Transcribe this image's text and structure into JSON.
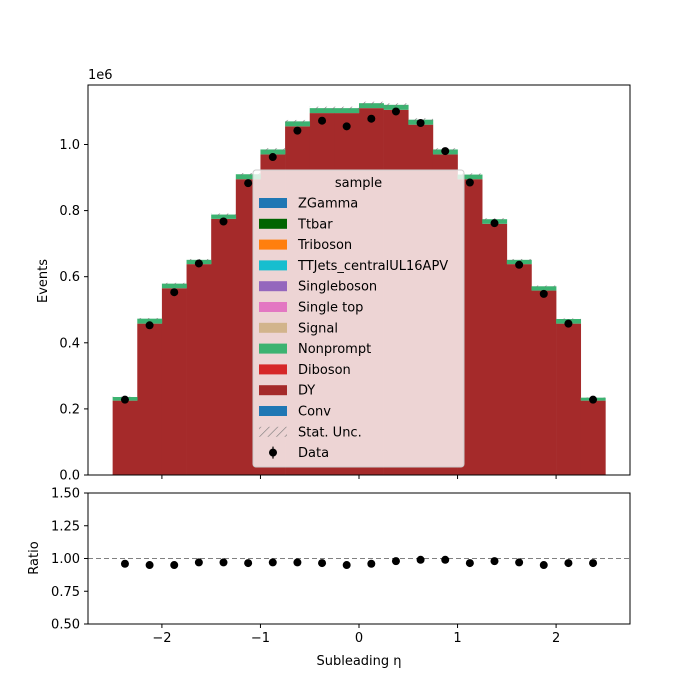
{
  "chart_data": {
    "type": "bar",
    "subtype": "stacked-step-histogram-with-ratio-panel",
    "xlabel": "Subleading η",
    "ylabel": "Events",
    "ratio_ylabel": "Ratio",
    "scale_label": "1e6",
    "scale_factor": 1000000,
    "xlim": [
      -2.75,
      2.75
    ],
    "ylim": [
      0,
      1180000
    ],
    "ratio_ylim": [
      0.5,
      1.5
    ],
    "ratio_reference": 1.0,
    "bin_edges": [
      -2.5,
      -2.25,
      -2.0,
      -1.75,
      -1.5,
      -1.25,
      -1.0,
      -0.75,
      -0.5,
      -0.25,
      0.0,
      0.25,
      0.5,
      0.75,
      1.0,
      1.25,
      1.5,
      1.75,
      2.0,
      2.25,
      2.5
    ],
    "x_ticks": [
      {
        "value": -2,
        "label": "−2"
      },
      {
        "value": -1,
        "label": "−1"
      },
      {
        "value": 0,
        "label": "0"
      },
      {
        "value": 1,
        "label": "1"
      },
      {
        "value": 2,
        "label": "2"
      }
    ],
    "y_ticks": [
      {
        "value": 0,
        "label": "0.0"
      },
      {
        "value": 200000,
        "label": "0.2"
      },
      {
        "value": 400000,
        "label": "0.4"
      },
      {
        "value": 600000,
        "label": "0.6"
      },
      {
        "value": 800000,
        "label": "0.8"
      },
      {
        "value": 1000000,
        "label": "1.0"
      }
    ],
    "ratio_y_ticks": [
      {
        "value": 0.5,
        "label": "0.50"
      },
      {
        "value": 0.75,
        "label": "0.75"
      },
      {
        "value": 1.0,
        "label": "1.00"
      },
      {
        "value": 1.25,
        "label": "1.25"
      },
      {
        "value": 1.5,
        "label": "1.50"
      }
    ],
    "series": [
      {
        "name": "DY",
        "color": "#a52a2a",
        "values": [
          225000,
          458000,
          565000,
          638000,
          775000,
          895000,
          970000,
          1055000,
          1095000,
          1095000,
          1110000,
          1105000,
          1060000,
          970000,
          895000,
          760000,
          638000,
          558000,
          458000,
          225000
        ]
      },
      {
        "name": "Nonprompt",
        "color": "#3cb371",
        "values": [
          11000,
          15000,
          14000,
          13000,
          13000,
          15000,
          15000,
          15000,
          15000,
          15000,
          15000,
          15000,
          15000,
          15000,
          14000,
          14000,
          13000,
          13000,
          14000,
          9000
        ]
      }
    ],
    "data_points": {
      "name": "Data",
      "x": [
        -2.375,
        -2.125,
        -1.875,
        -1.625,
        -1.375,
        -1.125,
        -0.875,
        -0.625,
        -0.375,
        -0.125,
        0.125,
        0.375,
        0.625,
        0.875,
        1.125,
        1.375,
        1.625,
        1.875,
        2.125,
        2.375
      ],
      "values": [
        228000,
        453000,
        553000,
        640000,
        767000,
        883000,
        962000,
        1042000,
        1072000,
        1055000,
        1078000,
        1100000,
        1065000,
        980000,
        885000,
        762000,
        636000,
        548000,
        458000,
        228000
      ],
      "ratio": [
        0.96,
        0.95,
        0.95,
        0.97,
        0.97,
        0.965,
        0.97,
        0.97,
        0.965,
        0.95,
        0.96,
        0.98,
        0.99,
        0.99,
        0.965,
        0.98,
        0.97,
        0.95,
        0.965,
        0.965
      ]
    },
    "legend": {
      "title": "sample",
      "placement": "center",
      "entries": [
        {
          "label": "ZGamma",
          "color": "#1f77b4",
          "kind": "patch"
        },
        {
          "label": "Ttbar",
          "color": "#006400",
          "kind": "patch"
        },
        {
          "label": "Triboson",
          "color": "#ff7f0e",
          "kind": "patch"
        },
        {
          "label": "TTJets_centralUL16APV",
          "color": "#17becf",
          "kind": "patch"
        },
        {
          "label": "Singleboson",
          "color": "#9467bd",
          "kind": "patch"
        },
        {
          "label": "Single top",
          "color": "#e377c2",
          "kind": "patch"
        },
        {
          "label": "Signal",
          "color": "#d2b48c",
          "kind": "patch"
        },
        {
          "label": "Nonprompt",
          "color": "#3cb371",
          "kind": "patch"
        },
        {
          "label": "Diboson",
          "color": "#d62728",
          "kind": "patch"
        },
        {
          "label": "DY",
          "color": "#a52a2a",
          "kind": "patch"
        },
        {
          "label": "Conv",
          "color": "#1f77b4",
          "kind": "patch"
        },
        {
          "label": "Stat. Unc.",
          "color": "#777777",
          "kind": "hatch"
        },
        {
          "label": "Data",
          "color": "#000000",
          "kind": "errorbar"
        }
      ]
    },
    "grid": false
  }
}
